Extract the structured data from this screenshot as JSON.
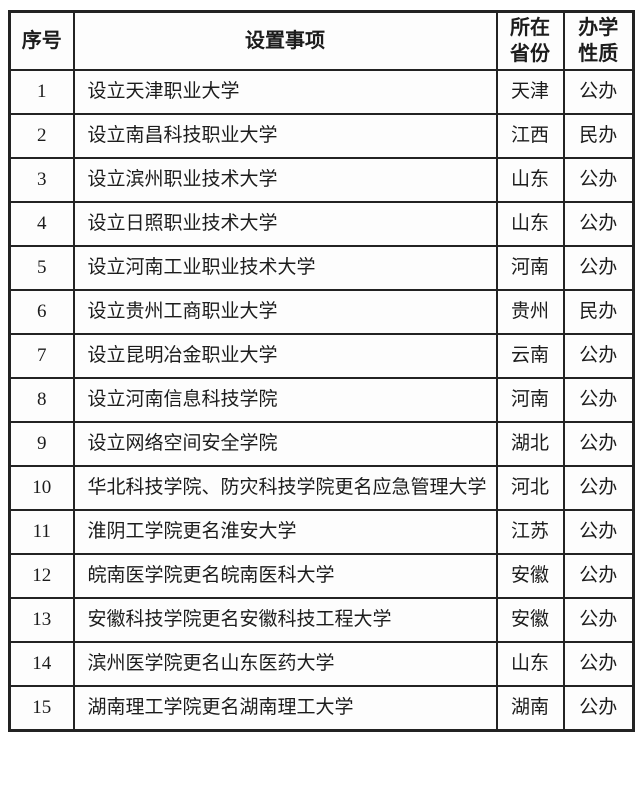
{
  "table": {
    "title_semantic": "高校设置事项列表",
    "headers": {
      "no": "序号",
      "item": "设置事项",
      "province_line1": "所在",
      "province_line2": "省份",
      "nature_line1": "办学",
      "nature_line2": "性质"
    },
    "rows": [
      {
        "no": "1",
        "item": "设立天津职业大学",
        "province": "天津",
        "nature": "公办"
      },
      {
        "no": "2",
        "item": "设立南昌科技职业大学",
        "province": "江西",
        "nature": "民办"
      },
      {
        "no": "3",
        "item": "设立滨州职业技术大学",
        "province": "山东",
        "nature": "公办"
      },
      {
        "no": "4",
        "item": "设立日照职业技术大学",
        "province": "山东",
        "nature": "公办"
      },
      {
        "no": "5",
        "item": "设立河南工业职业技术大学",
        "province": "河南",
        "nature": "公办"
      },
      {
        "no": "6",
        "item": "设立贵州工商职业大学",
        "province": "贵州",
        "nature": "民办"
      },
      {
        "no": "7",
        "item": "设立昆明冶金职业大学",
        "province": "云南",
        "nature": "公办"
      },
      {
        "no": "8",
        "item": "设立河南信息科技学院",
        "province": "河南",
        "nature": "公办"
      },
      {
        "no": "9",
        "item": "设立网络空间安全学院",
        "province": "湖北",
        "nature": "公办"
      },
      {
        "no": "10",
        "item": "华北科技学院、防灾科技学院更名应急管理大学",
        "province": "河北",
        "nature": "公办"
      },
      {
        "no": "11",
        "item": "淮阴工学院更名淮安大学",
        "province": "江苏",
        "nature": "公办"
      },
      {
        "no": "12",
        "item": "皖南医学院更名皖南医科大学",
        "province": "安徽",
        "nature": "公办"
      },
      {
        "no": "13",
        "item": "安徽科技学院更名安徽科技工程大学",
        "province": "安徽",
        "nature": "公办"
      },
      {
        "no": "14",
        "item": "滨州医学院更名山东医药大学",
        "province": "山东",
        "nature": "公办"
      },
      {
        "no": "15",
        "item": "湖南理工学院更名湖南理工大学",
        "province": "湖南",
        "nature": "公办"
      }
    ],
    "colors": {
      "border": "#232323",
      "text": "#1c1c1c",
      "background": "#ffffff"
    }
  }
}
